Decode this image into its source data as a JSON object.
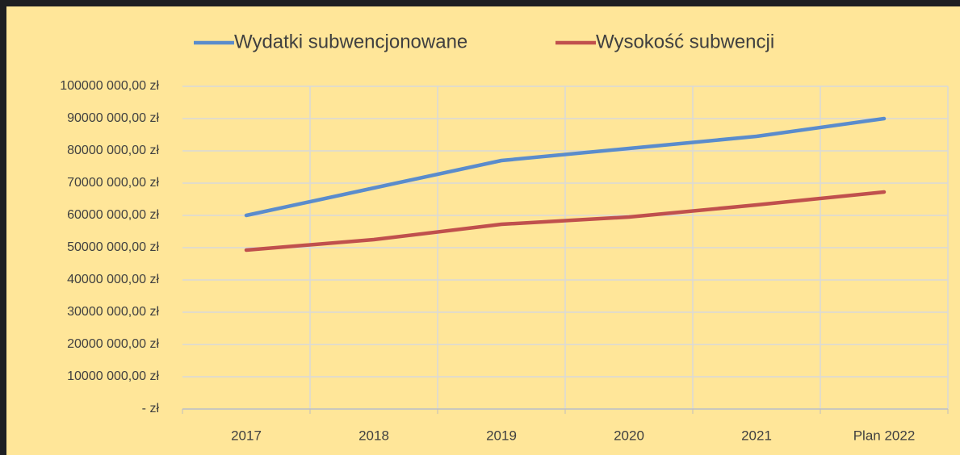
{
  "chart_data": {
    "type": "line",
    "categories": [
      "2017",
      "2018",
      "2019",
      "2020",
      "2021",
      "Plan 2022"
    ],
    "series": [
      {
        "name": "Wydatki subwencjonowane",
        "color": "#5a8ccc",
        "values": [
          60000000,
          68500000,
          77000000,
          80750000,
          84500000,
          90000000
        ]
      },
      {
        "name": "Wysokość subwencji",
        "color": "#c0504d",
        "values": [
          49250000,
          52500000,
          57250000,
          59500000,
          63250000,
          67250000
        ]
      }
    ],
    "ylim": [
      0,
      100000000
    ],
    "yticks": [
      {
        "value": 0,
        "label": "-   zł"
      },
      {
        "value": 10000000,
        "label": "10000 000,00 zł"
      },
      {
        "value": 20000000,
        "label": "20000 000,00 zł"
      },
      {
        "value": 30000000,
        "label": "30000 000,00 zł"
      },
      {
        "value": 40000000,
        "label": "40000 000,00 zł"
      },
      {
        "value": 50000000,
        "label": "50000 000,00 zł"
      },
      {
        "value": 60000000,
        "label": "60000 000,00 zł"
      },
      {
        "value": 70000000,
        "label": "70000 000,00 zł"
      },
      {
        "value": 80000000,
        "label": "80000 000,00 zł"
      },
      {
        "value": 90000000,
        "label": "90000 000,00 zł"
      },
      {
        "value": 100000000,
        "label": "100000 000,00 zł"
      }
    ],
    "grid": true,
    "legend": "top"
  }
}
